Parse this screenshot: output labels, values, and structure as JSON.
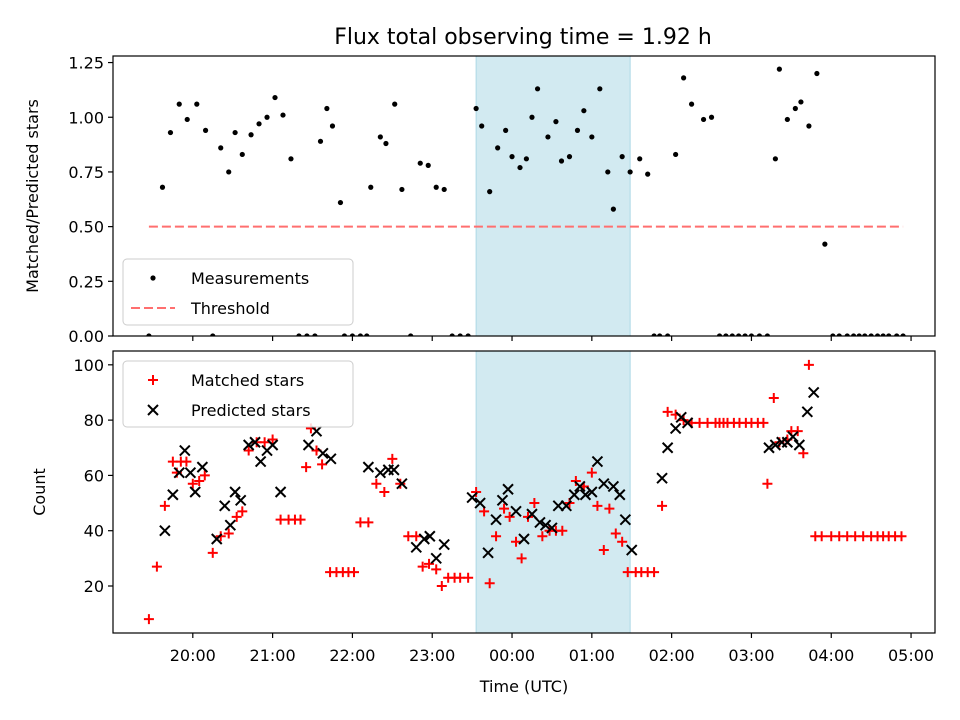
{
  "colors": {
    "shade": "#add8e6",
    "measure": "#000000",
    "threshold": "#ff6f6f",
    "matched": "#ff0000",
    "predicted": "#000000"
  },
  "chart_data": [
    {
      "type": "scatter",
      "title": "Flux total observing time = 1.92 h",
      "xlabel": "",
      "ylabel": "Matched/Predicted stars",
      "xlim_hours": [
        19.0,
        29.3
      ],
      "ylim": [
        0,
        1.28
      ],
      "yticks": [
        0.0,
        0.25,
        0.5,
        0.75,
        1.0,
        1.25
      ],
      "ytick_labels": [
        "0.00",
        "0.25",
        "0.50",
        "0.75",
        "1.00",
        "1.25"
      ],
      "shaded_span_hours": [
        23.55,
        25.48
      ],
      "threshold": {
        "label": "Threshold",
        "value": 0.5,
        "x_range_hours": [
          19.45,
          28.9
        ]
      },
      "legend": {
        "position": "lower-left",
        "entries": [
          "Measurements",
          "Threshold"
        ]
      },
      "series": [
        {
          "name": "Measurements",
          "marker": "dot",
          "x": [
            19.45,
            19.62,
            19.72,
            19.83,
            19.93,
            20.05,
            20.16,
            20.25,
            20.35,
            20.45,
            20.53,
            20.62,
            20.73,
            20.83,
            20.93,
            21.03,
            21.13,
            21.23,
            21.33,
            21.43,
            21.53,
            21.6,
            21.68,
            21.75,
            21.85,
            21.9,
            22.0,
            22.1,
            22.18,
            22.23,
            22.35,
            22.42,
            22.53,
            22.62,
            22.73,
            22.85,
            22.95,
            23.05,
            23.15,
            23.25,
            23.35,
            23.45,
            23.55,
            23.62,
            23.72,
            23.82,
            23.92,
            24.0,
            24.1,
            24.18,
            24.25,
            24.32,
            24.45,
            24.55,
            24.62,
            24.72,
            24.82,
            24.9,
            25.0,
            25.1,
            25.2,
            25.27,
            25.38,
            25.48,
            25.6,
            25.7,
            25.78,
            25.85,
            25.95,
            26.05,
            26.15,
            26.25,
            26.4,
            26.5,
            26.6,
            26.68,
            26.76,
            26.84,
            26.92,
            27.0,
            27.1,
            27.2,
            27.3,
            27.35,
            27.45,
            27.55,
            27.62,
            27.72,
            27.82,
            27.92,
            28.02,
            28.1,
            28.2,
            28.28,
            28.35,
            28.42,
            28.5,
            28.58,
            28.65,
            28.72,
            28.82,
            28.9
          ],
          "y": [
            0,
            0.68,
            0.93,
            1.06,
            0.99,
            1.06,
            0.94,
            0,
            0.86,
            0.75,
            0.93,
            0.83,
            0.92,
            0.97,
            1.0,
            1.09,
            1.01,
            0.81,
            0,
            0,
            0,
            0.89,
            1.04,
            0.96,
            0.61,
            0,
            0,
            0,
            0,
            0.68,
            0.91,
            0.88,
            1.06,
            0.67,
            0,
            0.79,
            0.78,
            0.68,
            0.67,
            0,
            0,
            0,
            1.04,
            0.96,
            0.66,
            0.86,
            0.94,
            0.82,
            0.77,
            0.81,
            1.0,
            1.13,
            0.91,
            0.98,
            0.8,
            0.82,
            0.94,
            1.03,
            0.91,
            1.13,
            0.75,
            0.58,
            0.82,
            0.75,
            0.81,
            0.74,
            0,
            0,
            0,
            0.83,
            1.18,
            1.06,
            0.99,
            1.0,
            0,
            0,
            0,
            0,
            0,
            0,
            0,
            0,
            0.81,
            1.22,
            0.99,
            1.04,
            1.07,
            0.96,
            1.2,
            0.42,
            0,
            0,
            0,
            0,
            0,
            0,
            0,
            0,
            0,
            0,
            0,
            0
          ]
        }
      ]
    },
    {
      "type": "scatter",
      "title": "",
      "xlabel": "Time (UTC)",
      "ylabel": "Count",
      "xlim_hours": [
        19.0,
        29.3
      ],
      "ylim": [
        3,
        105
      ],
      "yticks": [
        20,
        40,
        60,
        80,
        100
      ],
      "ytick_labels": [
        "20",
        "40",
        "60",
        "80",
        "100"
      ],
      "xticks_hours": [
        20,
        21,
        22,
        23,
        24,
        25,
        26,
        27,
        28,
        29
      ],
      "xtick_labels": [
        "20:00",
        "21:00",
        "22:00",
        "23:00",
        "00:00",
        "01:00",
        "02:00",
        "03:00",
        "04:00",
        "05:00"
      ],
      "shaded_span_hours": [
        23.55,
        25.48
      ],
      "legend": {
        "position": "top-left",
        "entries": [
          "Matched stars",
          "Predicted stars"
        ]
      },
      "series": [
        {
          "name": "Matched stars",
          "marker": "plus",
          "x": [
            19.45,
            19.55,
            19.65,
            19.75,
            19.8,
            19.85,
            19.92,
            20.0,
            20.08,
            20.15,
            20.25,
            20.35,
            20.45,
            20.55,
            20.62,
            20.7,
            20.8,
            20.9,
            21.0,
            21.1,
            21.2,
            21.28,
            21.35,
            21.42,
            21.48,
            21.55,
            21.62,
            21.72,
            21.8,
            21.88,
            21.95,
            22.02,
            22.1,
            22.2,
            22.3,
            22.4,
            22.5,
            22.6,
            22.7,
            22.8,
            22.88,
            22.96,
            23.05,
            23.12,
            23.2,
            23.28,
            23.35,
            23.45,
            23.55,
            23.65,
            23.72,
            23.8,
            23.9,
            23.97,
            24.05,
            24.12,
            24.2,
            24.28,
            24.38,
            24.47,
            24.55,
            24.63,
            24.72,
            24.8,
            24.9,
            25.0,
            25.07,
            25.15,
            25.22,
            25.3,
            25.38,
            25.45,
            25.55,
            25.62,
            25.7,
            25.78,
            25.88,
            25.95,
            26.05,
            26.15,
            26.25,
            26.35,
            26.45,
            26.55,
            26.6,
            26.65,
            26.7,
            26.78,
            26.85,
            26.93,
            27.0,
            27.08,
            27.15,
            27.2,
            27.28,
            27.35,
            27.45,
            27.5,
            27.58,
            27.65,
            27.72,
            27.8,
            27.88,
            28.0,
            28.1,
            28.2,
            28.3,
            28.4,
            28.5,
            28.58,
            28.65,
            28.72,
            28.8,
            28.88
          ],
          "y": [
            8,
            27,
            49,
            65,
            61,
            65,
            65,
            57,
            58,
            60,
            32,
            38,
            39,
            45,
            47,
            69,
            72,
            72,
            73,
            44,
            44,
            44,
            44,
            63,
            77,
            69,
            64,
            25,
            25,
            25,
            25,
            25,
            43,
            43,
            57,
            54,
            66,
            57,
            38,
            38,
            27,
            28,
            26,
            20,
            23,
            23,
            23,
            23,
            54,
            47,
            21,
            38,
            48,
            45,
            36,
            30,
            45,
            50,
            38,
            40,
            40,
            40,
            50,
            58,
            56,
            61,
            49,
            33,
            48,
            39,
            36,
            25,
            25,
            25,
            25,
            25,
            49,
            83,
            82,
            80,
            79,
            79,
            79,
            79,
            79,
            79,
            79,
            79,
            79,
            79,
            79,
            79,
            79,
            57,
            88,
            72,
            73,
            76,
            76,
            68,
            100,
            38,
            38,
            38,
            38,
            38,
            38,
            38,
            38,
            38,
            38,
            38,
            38,
            38
          ]
        },
        {
          "name": "Predicted stars",
          "marker": "x",
          "x": [
            19.65,
            19.75,
            19.83,
            19.9,
            19.97,
            20.03,
            20.12,
            20.3,
            20.4,
            20.47,
            20.53,
            20.6,
            20.7,
            20.78,
            20.85,
            20.93,
            21.0,
            21.1,
            21.45,
            21.55,
            21.63,
            21.73,
            22.2,
            22.35,
            22.45,
            22.52,
            22.62,
            22.8,
            22.9,
            22.97,
            23.05,
            23.15,
            23.5,
            23.6,
            23.7,
            23.8,
            23.88,
            23.95,
            24.05,
            24.15,
            24.25,
            24.35,
            24.42,
            24.5,
            24.58,
            24.68,
            24.78,
            24.85,
            24.92,
            25.0,
            25.07,
            25.15,
            25.27,
            25.35,
            25.42,
            25.5,
            25.88,
            25.95,
            26.05,
            26.12,
            26.2,
            27.22,
            27.3,
            27.38,
            27.45,
            27.52,
            27.6,
            27.7,
            27.78
          ],
          "y": [
            40,
            53,
            61,
            69,
            61,
            54,
            63,
            37,
            49,
            42,
            54,
            51,
            71,
            72,
            65,
            69,
            71,
            54,
            71,
            76,
            68,
            66,
            63,
            61,
            62,
            62,
            57,
            34,
            37,
            38,
            30,
            35,
            52,
            50,
            32,
            44,
            51,
            55,
            47,
            37,
            46,
            43,
            42,
            41,
            49,
            49,
            53,
            56,
            53,
            54,
            65,
            57,
            56,
            53,
            44,
            33,
            59,
            70,
            77,
            81,
            79,
            70,
            71,
            72,
            72,
            74,
            71,
            83,
            90
          ]
        }
      ]
    }
  ]
}
